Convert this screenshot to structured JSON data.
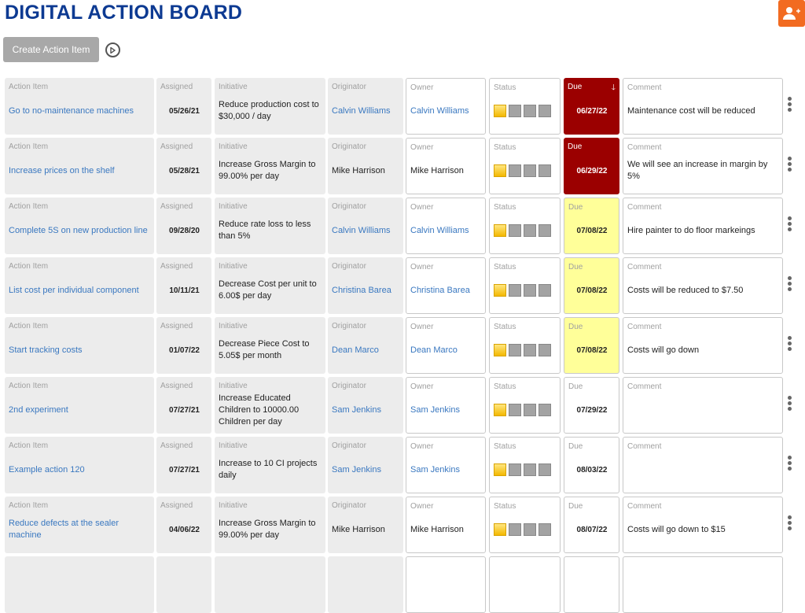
{
  "header": {
    "title": "DIGITAL ACTION BOARD",
    "create_label": "Create Action Item"
  },
  "labels": {
    "action": "Action Item",
    "assigned": "Assigned",
    "initiative": "Initiative",
    "originator": "Originator",
    "owner": "Owner",
    "status": "Status",
    "due": "Due",
    "comment": "Comment"
  },
  "colors": {
    "overdue": "#9b0000",
    "due_soon": "#ffff99",
    "title": "#0d3a92",
    "link": "#3a78c0"
  },
  "rows": [
    {
      "action": "Go to no-maintenance machines",
      "assigned": "05/26/21",
      "initiative": "Reduce production cost to $30,000 / day",
      "originator": "Calvin Williams",
      "originator_link": true,
      "owner": "Calvin Williams",
      "owner_link": true,
      "status": 1,
      "due": "06/27/22",
      "due_state": "red",
      "sorted": true,
      "comment": "Maintenance cost will be reduced"
    },
    {
      "action": "Increase prices on the shelf",
      "assigned": "05/28/21",
      "initiative": "Increase Gross Margin to 99.00% per day",
      "originator": "Mike Harrison",
      "originator_link": false,
      "owner": "Mike Harrison",
      "owner_link": false,
      "status": 1,
      "due": "06/29/22",
      "due_state": "red",
      "comment": "We will see an increase in margin by 5%"
    },
    {
      "action": "Complete 5S on new production line",
      "assigned": "09/28/20",
      "initiative": "Reduce rate loss to less than 5%",
      "originator": "Calvin Williams",
      "originator_link": true,
      "owner": "Calvin Williams",
      "owner_link": true,
      "status": 1,
      "due": "07/08/22",
      "due_state": "yel",
      "comment": "Hire painter to do floor markeings"
    },
    {
      "action": "List cost per individual component",
      "assigned": "10/11/21",
      "initiative": "Decrease Cost per unit to 6.00$ per day",
      "originator": "Christina Barea",
      "originator_link": true,
      "owner": "Christina Barea",
      "owner_link": true,
      "status": 1,
      "due": "07/08/22",
      "due_state": "yel",
      "comment": "Costs will be reduced to $7.50"
    },
    {
      "action": "Start tracking costs",
      "assigned": "01/07/22",
      "initiative": "Decrease Piece Cost to 5.05$ per month",
      "originator": "Dean Marco",
      "originator_link": true,
      "owner": "Dean Marco",
      "owner_link": true,
      "status": 1,
      "due": "07/08/22",
      "due_state": "yel",
      "comment": "Costs will go down"
    },
    {
      "action": "2nd experiment",
      "assigned": "07/27/21",
      "initiative": "Increase Educated Children to 10000.00 Children per day",
      "originator": "Sam Jenkins",
      "originator_link": true,
      "owner": "Sam Jenkins",
      "owner_link": true,
      "status": 1,
      "due": "07/29/22",
      "due_state": "w",
      "comment": ""
    },
    {
      "action": "Example action 120",
      "assigned": "07/27/21",
      "initiative": "Increase to 10 CI projects daily",
      "originator": "Sam Jenkins",
      "originator_link": true,
      "owner": "Sam Jenkins",
      "owner_link": true,
      "status": 1,
      "due": "08/03/22",
      "due_state": "w",
      "comment": ""
    },
    {
      "action": "Reduce defects at the sealer machine",
      "assigned": "04/06/22",
      "initiative": "Increase Gross Margin to 99.00% per day",
      "originator": "Mike Harrison",
      "originator_link": false,
      "owner": "Mike Harrison",
      "owner_link": false,
      "status": 1,
      "due": "08/07/22",
      "due_state": "w",
      "comment": "Costs will go down to $15"
    }
  ]
}
